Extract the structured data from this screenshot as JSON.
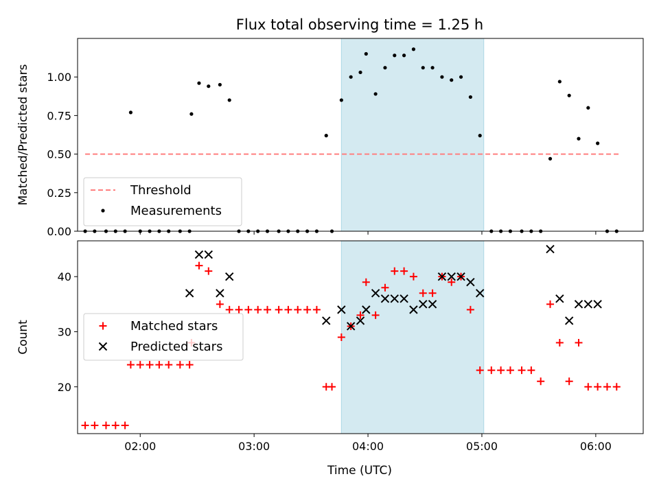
{
  "chart_data": [
    {
      "type": "scatter",
      "title": "Flux total observing time = 1.25 h",
      "xlabel": "",
      "ylabel": "Matched/Predicted stars",
      "xlim": [
        "01:27",
        "06:25"
      ],
      "ylim": [
        0,
        1.25
      ],
      "yticks": [
        "0.00",
        "0.25",
        "0.50",
        "0.75",
        "1.00"
      ],
      "xticks": [
        "02:00",
        "03:00",
        "04:00",
        "05:00",
        "06:00"
      ],
      "shaded_interval": [
        "03:46",
        "05:01"
      ],
      "shaded_color": "#d4eaf1",
      "legend_position": "lower-left",
      "series": [
        {
          "name": "Threshold",
          "style": "dashed-line",
          "color": "#ff7f7f",
          "x": [
            "01:31",
            "06:12"
          ],
          "y": [
            0.5,
            0.5
          ]
        },
        {
          "name": "Measurements",
          "style": "dot",
          "color": "#000000",
          "x": [
            "01:31",
            "01:36",
            "01:42",
            "01:47",
            "01:52",
            "01:55",
            "02:00",
            "02:05",
            "02:10",
            "02:15",
            "02:21",
            "02:26",
            "02:27",
            "02:31",
            "02:36",
            "02:42",
            "02:47",
            "02:52",
            "02:57",
            "03:02",
            "03:07",
            "03:13",
            "03:18",
            "03:23",
            "03:28",
            "03:33",
            "03:38",
            "03:41",
            "03:46",
            "03:51",
            "03:56",
            "03:59",
            "04:04",
            "04:09",
            "04:14",
            "04:19",
            "04:24",
            "04:29",
            "04:34",
            "04:39",
            "04:44",
            "04:49",
            "04:54",
            "04:59",
            "05:05",
            "05:10",
            "05:15",
            "05:21",
            "05:26",
            "05:31",
            "05:36",
            "05:41",
            "05:46",
            "05:51",
            "05:56",
            "06:01",
            "06:06",
            "06:11"
          ],
          "y": [
            0,
            0,
            0,
            0,
            0,
            0.77,
            0,
            0,
            0,
            0,
            0,
            0,
            0.76,
            0.96,
            0.94,
            0.95,
            0.85,
            0,
            0,
            0,
            0,
            0,
            0,
            0,
            0,
            0,
            0.62,
            0,
            0.85,
            1.0,
            1.03,
            1.15,
            0.89,
            1.06,
            1.14,
            1.14,
            1.18,
            1.06,
            1.06,
            1.0,
            0.98,
            1.0,
            0.87,
            0.62,
            0,
            0,
            0,
            0,
            0,
            0,
            0.47,
            0.97,
            0.88,
            0.6,
            0.8,
            0.57,
            0,
            0
          ]
        }
      ]
    },
    {
      "type": "scatter",
      "title": "",
      "xlabel": "Time (UTC)",
      "ylabel": "Count",
      "xlim": [
        "01:27",
        "06:25"
      ],
      "ylim": [
        11.5,
        46.5
      ],
      "yticks": [
        "20",
        "30",
        "40"
      ],
      "xticks": [
        "02:00",
        "03:00",
        "04:00",
        "05:00",
        "06:00"
      ],
      "shaded_interval": [
        "03:46",
        "05:01"
      ],
      "shaded_color": "#d4eaf1",
      "legend_position": "center-left",
      "series": [
        {
          "name": "Matched stars",
          "marker": "plus",
          "color": "#ff0000",
          "x": [
            "01:31",
            "01:36",
            "01:42",
            "01:47",
            "01:52",
            "01:55",
            "02:00",
            "02:05",
            "02:10",
            "02:15",
            "02:21",
            "02:26",
            "02:27",
            "02:31",
            "02:36",
            "02:42",
            "02:47",
            "02:52",
            "02:57",
            "03:02",
            "03:07",
            "03:13",
            "03:18",
            "03:23",
            "03:28",
            "03:33",
            "03:38",
            "03:41",
            "03:46",
            "03:51",
            "03:56",
            "03:59",
            "04:04",
            "04:09",
            "04:14",
            "04:19",
            "04:24",
            "04:29",
            "04:34",
            "04:39",
            "04:44",
            "04:49",
            "04:54",
            "04:59",
            "05:05",
            "05:10",
            "05:15",
            "05:21",
            "05:26",
            "05:31",
            "05:36",
            "05:41",
            "05:46",
            "05:51",
            "05:56",
            "06:01",
            "06:06",
            "06:11"
          ],
          "y": [
            13,
            13,
            13,
            13,
            13,
            24,
            24,
            24,
            24,
            24,
            24,
            24,
            28,
            42,
            41,
            35,
            34,
            34,
            34,
            34,
            34,
            34,
            34,
            34,
            34,
            34,
            20,
            20,
            29,
            31,
            33,
            39,
            33,
            38,
            41,
            41,
            40,
            37,
            37,
            40,
            39,
            40,
            34,
            23,
            23,
            23,
            23,
            23,
            23,
            21,
            35,
            28,
            21,
            28,
            20,
            20,
            20,
            20
          ]
        },
        {
          "name": "Predicted stars",
          "marker": "x",
          "color": "#000000",
          "x": [
            "02:26",
            "02:31",
            "02:36",
            "02:42",
            "02:47",
            "03:38",
            "03:46",
            "03:51",
            "03:56",
            "03:59",
            "04:04",
            "04:09",
            "04:14",
            "04:19",
            "04:24",
            "04:29",
            "04:34",
            "04:39",
            "04:44",
            "04:49",
            "04:54",
            "04:59",
            "05:36",
            "05:41",
            "05:46",
            "05:51",
            "05:56",
            "06:01"
          ],
          "y": [
            37,
            44,
            44,
            37,
            40,
            32,
            34,
            31,
            32,
            34,
            37,
            36,
            36,
            36,
            34,
            35,
            35,
            40,
            40,
            40,
            39,
            37,
            45,
            36,
            32,
            35,
            35,
            35
          ]
        }
      ]
    }
  ]
}
